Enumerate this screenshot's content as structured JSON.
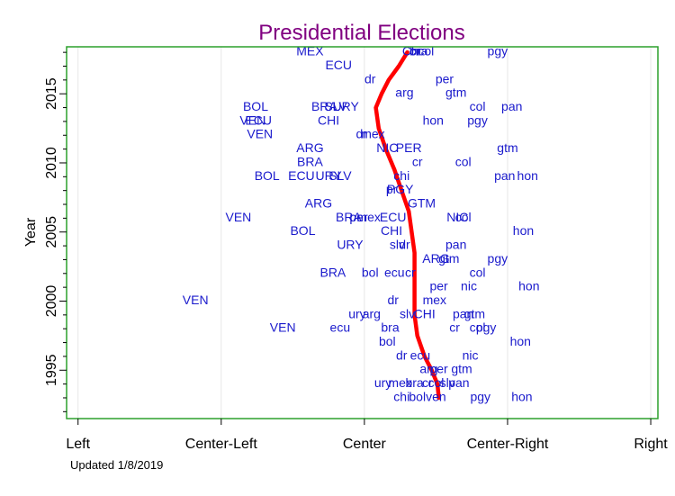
{
  "chart_data": {
    "type": "scatter",
    "title": "Presidential Elections",
    "xlabel": "",
    "ylabel": "Year",
    "footnote": "Updated 1/8/2019",
    "x_ticks": [
      {
        "value": 1,
        "label": "Left"
      },
      {
        "value": 2,
        "label": "Center-Left"
      },
      {
        "value": 3,
        "label": "Center"
      },
      {
        "value": 4,
        "label": "Center-Right"
      },
      {
        "value": 5,
        "label": "Right"
      }
    ],
    "y_ticks": [
      1995,
      2000,
      2005,
      2010,
      2015
    ],
    "xlim": [
      0.92,
      5.05
    ],
    "ylim": [
      1991.5,
      2018.4
    ],
    "grid": {
      "x": true,
      "y": false
    },
    "colors": {
      "label": "#1a1acc",
      "trend": "#ff0000",
      "frame": "#2ca02c",
      "title": "#800080"
    },
    "points": [
      {
        "label": "MEX",
        "x": 2.62,
        "y": 2018.1
      },
      {
        "label": "Chi",
        "x": 3.33,
        "y": 2018.1
      },
      {
        "label": "cr",
        "x": 3.35,
        "y": 2018.1
      },
      {
        "label": "bra",
        "x": 3.38,
        "y": 2018.1
      },
      {
        "label": "col",
        "x": 3.43,
        "y": 2018.1
      },
      {
        "label": "pgy",
        "x": 3.93,
        "y": 2018.1
      },
      {
        "label": "ECU",
        "x": 2.82,
        "y": 2017.1
      },
      {
        "label": "dr",
        "x": 3.04,
        "y": 2016.1
      },
      {
        "label": "per",
        "x": 3.56,
        "y": 2016.1
      },
      {
        "label": "arg",
        "x": 3.28,
        "y": 2015.1
      },
      {
        "label": "gtm",
        "x": 3.64,
        "y": 2015.1
      },
      {
        "label": "BOL",
        "x": 2.24,
        "y": 2014.1
      },
      {
        "label": "BRA",
        "x": 2.72,
        "y": 2014.1
      },
      {
        "label": "SLV",
        "x": 2.8,
        "y": 2014.1
      },
      {
        "label": "URY",
        "x": 2.87,
        "y": 2014.1
      },
      {
        "label": "col",
        "x": 3.79,
        "y": 2014.1
      },
      {
        "label": "pan",
        "x": 4.03,
        "y": 2014.1
      },
      {
        "label": "VEN",
        "x": 2.22,
        "y": 2013.1
      },
      {
        "label": "ECU",
        "x": 2.26,
        "y": 2013.1
      },
      {
        "label": "CHI",
        "x": 2.75,
        "y": 2013.1
      },
      {
        "label": "hon",
        "x": 3.48,
        "y": 2013.1
      },
      {
        "label": "pgy",
        "x": 3.79,
        "y": 2013.1
      },
      {
        "label": "VEN",
        "x": 2.27,
        "y": 2012.1
      },
      {
        "label": "dr",
        "x": 2.98,
        "y": 2012.1
      },
      {
        "label": "mex",
        "x": 3.06,
        "y": 2012.1
      },
      {
        "label": "ARG",
        "x": 2.62,
        "y": 2011.1
      },
      {
        "label": "NIC",
        "x": 3.16,
        "y": 2011.1
      },
      {
        "label": "PER",
        "x": 3.31,
        "y": 2011.1
      },
      {
        "label": "gtm",
        "x": 4.0,
        "y": 2011.1
      },
      {
        "label": "BRA",
        "x": 2.62,
        "y": 2010.1
      },
      {
        "label": "cr",
        "x": 3.37,
        "y": 2010.1
      },
      {
        "label": "col",
        "x": 3.69,
        "y": 2010.1
      },
      {
        "label": "BOL",
        "x": 2.32,
        "y": 2009.1
      },
      {
        "label": "ECU",
        "x": 2.56,
        "y": 2009.1
      },
      {
        "label": "URY",
        "x": 2.75,
        "y": 2009.1
      },
      {
        "label": "SLV",
        "x": 2.83,
        "y": 2009.1
      },
      {
        "label": "chi",
        "x": 3.26,
        "y": 2009.1
      },
      {
        "label": "pan",
        "x": 3.98,
        "y": 2009.1
      },
      {
        "label": "hon",
        "x": 4.14,
        "y": 2009.1
      },
      {
        "label": "pr",
        "x": 3.19,
        "y": 2008.1
      },
      {
        "label": "PGY",
        "x": 3.25,
        "y": 2008.1
      },
      {
        "label": "ARG",
        "x": 2.68,
        "y": 2007.1
      },
      {
        "label": "GTM",
        "x": 3.4,
        "y": 2007.1
      },
      {
        "label": "VEN",
        "x": 2.12,
        "y": 2006.1
      },
      {
        "label": "BRA",
        "x": 2.89,
        "y": 2006.1
      },
      {
        "label": "per",
        "x": 2.96,
        "y": 2006.1
      },
      {
        "label": "mex",
        "x": 3.03,
        "y": 2006.1
      },
      {
        "label": "ECU",
        "x": 3.2,
        "y": 2006.1
      },
      {
        "label": "NIC",
        "x": 3.65,
        "y": 2006.1
      },
      {
        "label": "col",
        "x": 3.69,
        "y": 2006.1
      },
      {
        "label": "BOL",
        "x": 2.57,
        "y": 2005.1
      },
      {
        "label": "CHI",
        "x": 3.19,
        "y": 2005.1
      },
      {
        "label": "hon",
        "x": 4.11,
        "y": 2005.1
      },
      {
        "label": "URY",
        "x": 2.9,
        "y": 2004.1
      },
      {
        "label": "slv",
        "x": 3.23,
        "y": 2004.1
      },
      {
        "label": "dr",
        "x": 3.28,
        "y": 2004.1
      },
      {
        "label": "pan",
        "x": 3.64,
        "y": 2004.1
      },
      {
        "label": "ARG",
        "x": 3.5,
        "y": 2003.1
      },
      {
        "label": "gtm",
        "x": 3.59,
        "y": 2003.1
      },
      {
        "label": "pgy",
        "x": 3.93,
        "y": 2003.1
      },
      {
        "label": "BRA",
        "x": 2.78,
        "y": 2002.1
      },
      {
        "label": "bol",
        "x": 3.04,
        "y": 2002.1
      },
      {
        "label": "ecu",
        "x": 3.21,
        "y": 2002.1
      },
      {
        "label": "cr",
        "x": 3.32,
        "y": 2002.1
      },
      {
        "label": "col",
        "x": 3.79,
        "y": 2002.1
      },
      {
        "label": "per",
        "x": 3.52,
        "y": 2001.1
      },
      {
        "label": "nic",
        "x": 3.73,
        "y": 2001.1
      },
      {
        "label": "hon",
        "x": 4.15,
        "y": 2001.1
      },
      {
        "label": "VEN",
        "x": 1.82,
        "y": 2000.1
      },
      {
        "label": "dr",
        "x": 3.2,
        "y": 2000.1
      },
      {
        "label": "mex",
        "x": 3.49,
        "y": 2000.1
      },
      {
        "label": "ury",
        "x": 2.95,
        "y": 1999.1
      },
      {
        "label": "arg",
        "x": 3.05,
        "y": 1999.1
      },
      {
        "label": "slv",
        "x": 3.3,
        "y": 1999.1
      },
      {
        "label": "CHI",
        "x": 3.42,
        "y": 1999.1
      },
      {
        "label": "pan",
        "x": 3.69,
        "y": 1999.1
      },
      {
        "label": "gtm",
        "x": 3.77,
        "y": 1999.1
      },
      {
        "label": "VEN",
        "x": 2.43,
        "y": 1998.1
      },
      {
        "label": "ecu",
        "x": 2.83,
        "y": 1998.1
      },
      {
        "label": "bra",
        "x": 3.18,
        "y": 1998.1
      },
      {
        "label": "cr",
        "x": 3.63,
        "y": 1998.1
      },
      {
        "label": "col",
        "x": 3.79,
        "y": 1998.1
      },
      {
        "label": "pgy",
        "x": 3.85,
        "y": 1998.1
      },
      {
        "label": "bol",
        "x": 3.16,
        "y": 1997.1
      },
      {
        "label": "hon",
        "x": 4.09,
        "y": 1997.1
      },
      {
        "label": "dr",
        "x": 3.26,
        "y": 1996.1
      },
      {
        "label": "ecu",
        "x": 3.39,
        "y": 1996.1
      },
      {
        "label": "nic",
        "x": 3.74,
        "y": 1996.1
      },
      {
        "label": "arg",
        "x": 3.45,
        "y": 1995.1
      },
      {
        "label": "per",
        "x": 3.52,
        "y": 1995.1
      },
      {
        "label": "gtm",
        "x": 3.68,
        "y": 1995.1
      },
      {
        "label": "ury",
        "x": 3.13,
        "y": 1994.1
      },
      {
        "label": "mex",
        "x": 3.25,
        "y": 1994.1
      },
      {
        "label": "bra",
        "x": 3.35,
        "y": 1994.1
      },
      {
        "label": "cr",
        "x": 3.44,
        "y": 1994.1
      },
      {
        "label": "col",
        "x": 3.5,
        "y": 1994.1
      },
      {
        "label": "slv",
        "x": 3.58,
        "y": 1994.1
      },
      {
        "label": "pan",
        "x": 3.66,
        "y": 1994.1
      },
      {
        "label": "chi",
        "x": 3.26,
        "y": 1993.1
      },
      {
        "label": "bol",
        "x": 3.37,
        "y": 1993.1
      },
      {
        "label": "ven",
        "x": 3.5,
        "y": 1993.1
      },
      {
        "label": "pgy",
        "x": 3.81,
        "y": 1993.1
      },
      {
        "label": "hon",
        "x": 4.1,
        "y": 1993.1
      }
    ],
    "trend": {
      "name": "",
      "x": [
        3.3,
        3.24,
        3.17,
        3.12,
        3.08,
        3.1,
        3.15,
        3.21,
        3.26,
        3.31,
        3.33,
        3.35,
        3.35,
        3.35,
        3.35,
        3.37,
        3.42,
        3.47,
        3.51,
        3.52
      ],
      "y": [
        2018.0,
        2017.0,
        2016.0,
        2015.0,
        2014.0,
        2012.5,
        2011.0,
        2009.5,
        2008.0,
        2006.5,
        2005.0,
        2003.5,
        2002.0,
        2000.5,
        1999.0,
        1997.5,
        1996.0,
        1995.0,
        1994.0,
        1993.0
      ]
    }
  }
}
